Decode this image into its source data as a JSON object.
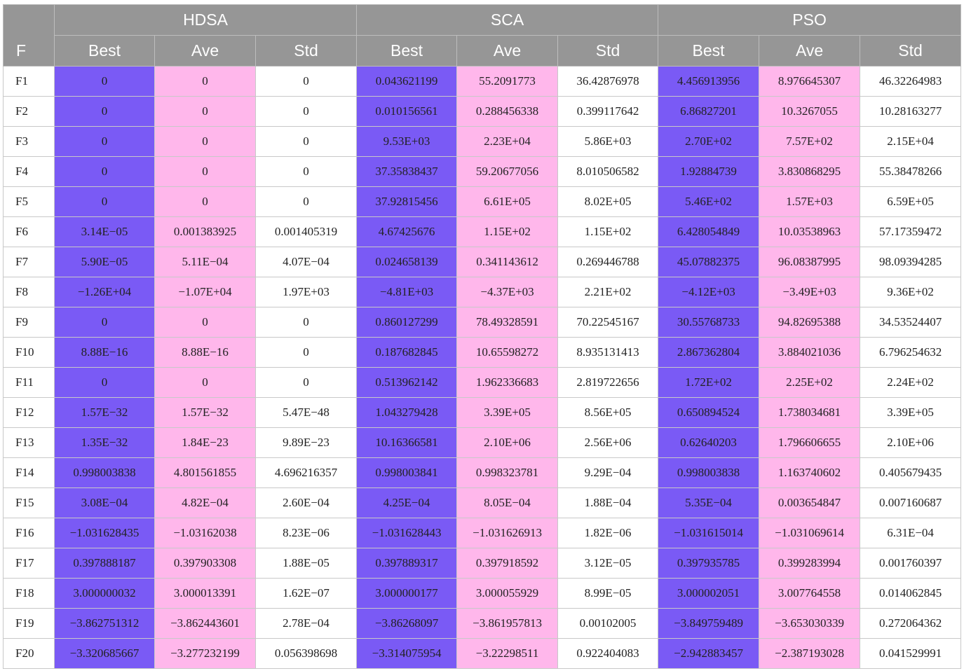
{
  "table": {
    "f_label": "F",
    "groups": [
      "HDSA",
      "SCA",
      "PSO"
    ],
    "subheaders": [
      "Best",
      "Ave",
      "Std"
    ],
    "colors": {
      "header_bg": "#969696",
      "best_bg": "#7a5af5",
      "ave_bg": "#ffb7eb",
      "std_bg": "#ffffff"
    },
    "rows": [
      [
        "F1",
        "0",
        "0",
        "0",
        "0.043621199",
        "55.2091773",
        "36.42876978",
        "4.456913956",
        "8.976645307",
        "46.32264983"
      ],
      [
        "F2",
        "0",
        "0",
        "0",
        "0.010156561",
        "0.288456338",
        "0.399117642",
        "6.86827201",
        "10.3267055",
        "10.28163277"
      ],
      [
        "F3",
        "0",
        "0",
        "0",
        "9.53E+03",
        "2.23E+04",
        "5.86E+03",
        "2.70E+02",
        "7.57E+02",
        "2.15E+04"
      ],
      [
        "F4",
        "0",
        "0",
        "0",
        "37.35838437",
        "59.20677056",
        "8.010506582",
        "1.92884739",
        "3.830868295",
        "55.38478266"
      ],
      [
        "F5",
        "0",
        "0",
        "0",
        "37.92815456",
        "6.61E+05",
        "8.02E+05",
        "5.46E+02",
        "1.57E+03",
        "6.59E+05"
      ],
      [
        "F6",
        "3.14E−05",
        "0.001383925",
        "0.001405319",
        "4.67425676",
        "1.15E+02",
        "1.15E+02",
        "6.428054849",
        "10.03538963",
        "57.17359472"
      ],
      [
        "F7",
        "5.90E−05",
        "5.11E−04",
        "4.07E−04",
        "0.024658139",
        "0.341143612",
        "0.269446788",
        "45.07882375",
        "96.08387995",
        "98.09394285"
      ],
      [
        "F8",
        "−1.26E+04",
        "−1.07E+04",
        "1.97E+03",
        "−4.81E+03",
        "−4.37E+03",
        "2.21E+02",
        "−4.12E+03",
        "−3.49E+03",
        "9.36E+02"
      ],
      [
        "F9",
        "0",
        "0",
        "0",
        "0.860127299",
        "78.49328591",
        "70.22545167",
        "30.55768733",
        "94.82695388",
        "34.53524407"
      ],
      [
        "F10",
        "8.88E−16",
        "8.88E−16",
        "0",
        "0.187682845",
        "10.65598272",
        "8.935131413",
        "2.867362804",
        "3.884021036",
        "6.796254632"
      ],
      [
        "F11",
        "0",
        "0",
        "0",
        "0.513962142",
        "1.962336683",
        "2.819722656",
        "1.72E+02",
        "2.25E+02",
        "2.24E+02"
      ],
      [
        "F12",
        "1.57E−32",
        "1.57E−32",
        "5.47E−48",
        "1.043279428",
        "3.39E+05",
        "8.56E+05",
        "0.650894524",
        "1.738034681",
        "3.39E+05"
      ],
      [
        "F13",
        "1.35E−32",
        "1.84E−23",
        "9.89E−23",
        "10.16366581",
        "2.10E+06",
        "2.56E+06",
        "0.62640203",
        "1.796606655",
        "2.10E+06"
      ],
      [
        "F14",
        "0.998003838",
        "4.801561855",
        "4.696216357",
        "0.998003841",
        "0.998323781",
        "9.29E−04",
        "0.998003838",
        "1.163740602",
        "0.405679435"
      ],
      [
        "F15",
        "3.08E−04",
        "4.82E−04",
        "2.60E−04",
        "4.25E−04",
        "8.05E−04",
        "1.88E−04",
        "5.35E−04",
        "0.003654847",
        "0.007160687"
      ],
      [
        "F16",
        "−1.031628435",
        "−1.03162038",
        "8.23E−06",
        "−1.031628443",
        "−1.031626913",
        "1.82E−06",
        "−1.031615014",
        "−1.031069614",
        "6.31E−04"
      ],
      [
        "F17",
        "0.397888187",
        "0.397903308",
        "1.88E−05",
        "0.397889317",
        "0.397918592",
        "3.12E−05",
        "0.397935785",
        "0.399283994",
        "0.001760397"
      ],
      [
        "F18",
        "3.000000032",
        "3.000013391",
        "1.62E−07",
        "3.000000177",
        "3.000055929",
        "8.99E−05",
        "3.000002051",
        "3.007764558",
        "0.014062845"
      ],
      [
        "F19",
        "−3.862751312",
        "−3.862443601",
        "2.78E−04",
        "−3.86268097",
        "−3.861957813",
        "0.00102005",
        "−3.849759489",
        "−3.653030339",
        "0.272064362"
      ],
      [
        "F20",
        "−3.320685667",
        "−3.277232199",
        "0.056398698",
        "−3.314075954",
        "−3.22298511",
        "0.922404083",
        "−2.942883457",
        "−2.387193028",
        "0.041529991"
      ]
    ]
  }
}
